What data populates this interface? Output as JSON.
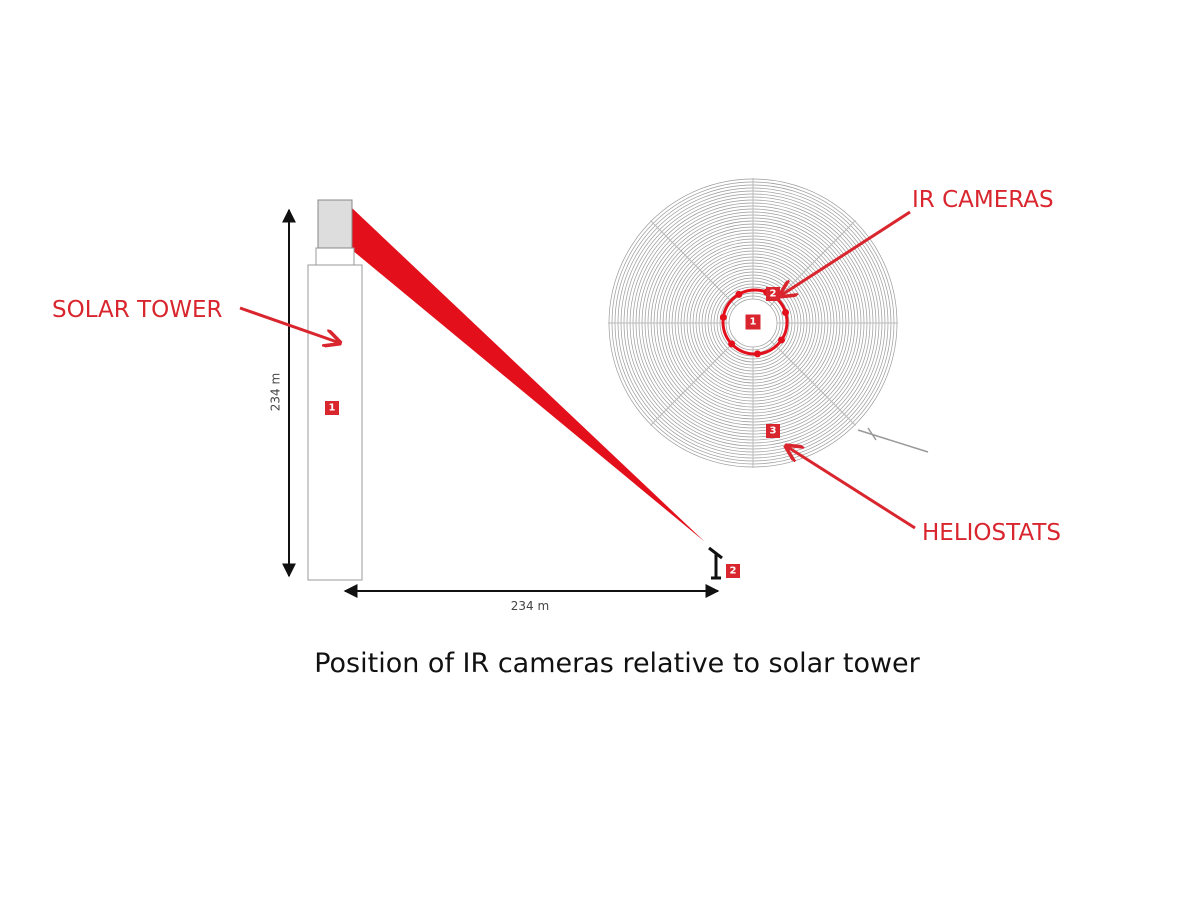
{
  "labels": {
    "solar_tower": "SOLAR TOWER",
    "ir_cameras": "IR CAMERAS",
    "heliostats": "HELIOSTATS"
  },
  "side_view": {
    "height_label": "234 m",
    "distance_label": "234 m",
    "tower_marker": "1",
    "camera_marker": "2"
  },
  "top_view": {
    "tower_marker": "1",
    "camera_marker": "2",
    "heliostat_marker": "3"
  },
  "caption": "Position of IR cameras relative to solar tower"
}
